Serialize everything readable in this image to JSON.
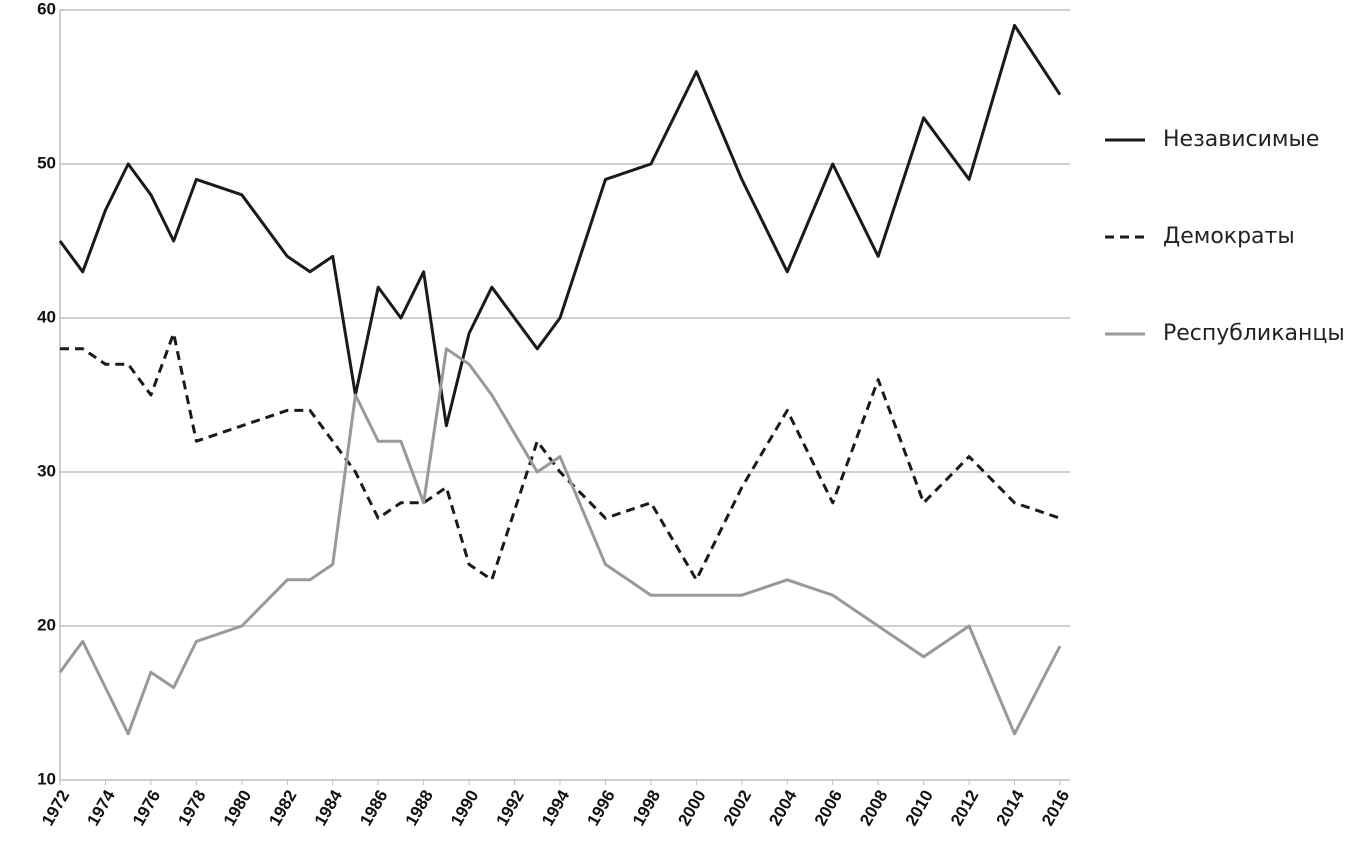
{
  "chart_data": {
    "type": "line",
    "xlim": [
      1972,
      2016
    ],
    "xticks": [
      1972,
      1974,
      1976,
      1978,
      1980,
      1982,
      1984,
      1986,
      1988,
      1990,
      1992,
      1994,
      1996,
      1998,
      2000,
      2002,
      2004,
      2006,
      2008,
      2010,
      2012,
      2014,
      2016
    ],
    "ylim": [
      10,
      60
    ],
    "yticks": [
      10,
      20,
      30,
      40,
      50,
      60
    ],
    "grid": true,
    "legend": "right",
    "series": [
      {
        "name": "Независимые",
        "color": "#1a1a1a",
        "dashed": false,
        "x": [
          1972,
          1973,
          1974,
          1975,
          1976,
          1977,
          1978,
          1980,
          1982,
          1983,
          1984,
          1985,
          1986,
          1987,
          1988,
          1989,
          1990,
          1991,
          1993,
          1994,
          1996,
          1998,
          2000,
          2002,
          2004,
          2006,
          2008,
          2010,
          2012,
          2014,
          2016
        ],
        "values": [
          45,
          43,
          47,
          50,
          48,
          45,
          49,
          48,
          44,
          43,
          44,
          35,
          42,
          40,
          43,
          33,
          39,
          42,
          38,
          40,
          49,
          50,
          56,
          49,
          43,
          50,
          44,
          53,
          49,
          59,
          54.5
        ]
      },
      {
        "name": "Демократы",
        "color": "#1a1a1a",
        "dashed": true,
        "x": [
          1972,
          1973,
          1974,
          1975,
          1976,
          1977,
          1978,
          1980,
          1982,
          1983,
          1985,
          1986,
          1987,
          1988,
          1989,
          1990,
          1991,
          1993,
          1994,
          1996,
          1998,
          2000,
          2002,
          2004,
          2006,
          2008,
          2010,
          2012,
          2014,
          2016
        ],
        "values": [
          38,
          38,
          37,
          37,
          35,
          39,
          32,
          33,
          34,
          34,
          30,
          27,
          28,
          28,
          29,
          24,
          23,
          32,
          30,
          27,
          28,
          23,
          29,
          34,
          28,
          36,
          28,
          31,
          28,
          27
        ]
      },
      {
        "name": "Республиканцы",
        "color": "#999999",
        "dashed": false,
        "x": [
          1972,
          1973,
          1974,
          1975,
          1976,
          1977,
          1978,
          1980,
          1982,
          1983,
          1984,
          1985,
          1986,
          1987,
          1988,
          1989,
          1990,
          1991,
          1993,
          1994,
          1996,
          1998,
          2000,
          2002,
          2004,
          2006,
          2008,
          2010,
          2012,
          2014,
          2016
        ],
        "values": [
          17,
          19,
          16,
          13,
          17,
          16,
          19,
          20,
          23,
          23,
          24,
          35,
          32,
          32,
          28,
          38,
          37,
          35,
          30,
          31,
          24,
          22,
          22,
          22,
          23,
          22,
          20,
          18,
          20,
          13,
          18.7
        ]
      }
    ]
  }
}
